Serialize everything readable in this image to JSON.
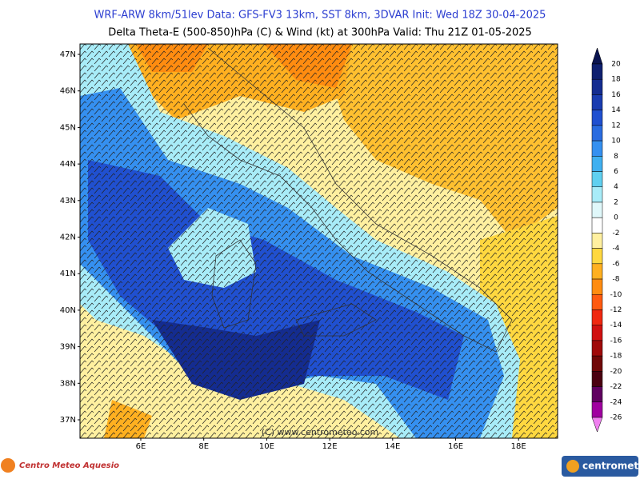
{
  "header": {
    "line1": "WRF-ARW 8km/51lev   Data: GFS-FV3 13km, SST 8km, 3DVAR   Init: Wed 18Z 30-04-2025",
    "line2": "Delta Theta-E (500-850)hPa (C) & Wind (kt) at 300hPa    Valid: Thu 21Z 01-05-2025"
  },
  "map": {
    "lat_labels": [
      "47N",
      "46N",
      "45N",
      "44N",
      "43N",
      "42N",
      "41N",
      "40N",
      "39N",
      "38N",
      "37N"
    ],
    "lon_labels": [
      "6E",
      "8E",
      "10E",
      "12E",
      "14E",
      "16E",
      "18E"
    ],
    "watermark": "(C) www.centrometeo.com"
  },
  "colorbar": {
    "labels": [
      "20",
      "18",
      "16",
      "14",
      "12",
      "10",
      "8",
      "6",
      "4",
      "2",
      "0",
      "-2",
      "-4",
      "-6",
      "-8",
      "-10",
      "-12",
      "-14",
      "-16",
      "-18",
      "-20",
      "-22",
      "-24",
      "-26"
    ],
    "colors": [
      "#0a1450",
      "#0f2070",
      "#142c90",
      "#1a3cb0",
      "#2050d0",
      "#2a6ce0",
      "#3590f0",
      "#40b0f0",
      "#60d0f0",
      "#a8ecf8",
      "#e0f8fa",
      "#ffffff",
      "#fff0a0",
      "#ffd840",
      "#ffb020",
      "#ff8c10",
      "#ff5a10",
      "#f02810",
      "#d01010",
      "#a00a0a",
      "#700808",
      "#4a0010",
      "#600060",
      "#a000a0",
      "#f080f0"
    ]
  },
  "footer": {
    "left_logo": "Centro Meteo Aquesio",
    "right_logo": "centrometeo"
  }
}
